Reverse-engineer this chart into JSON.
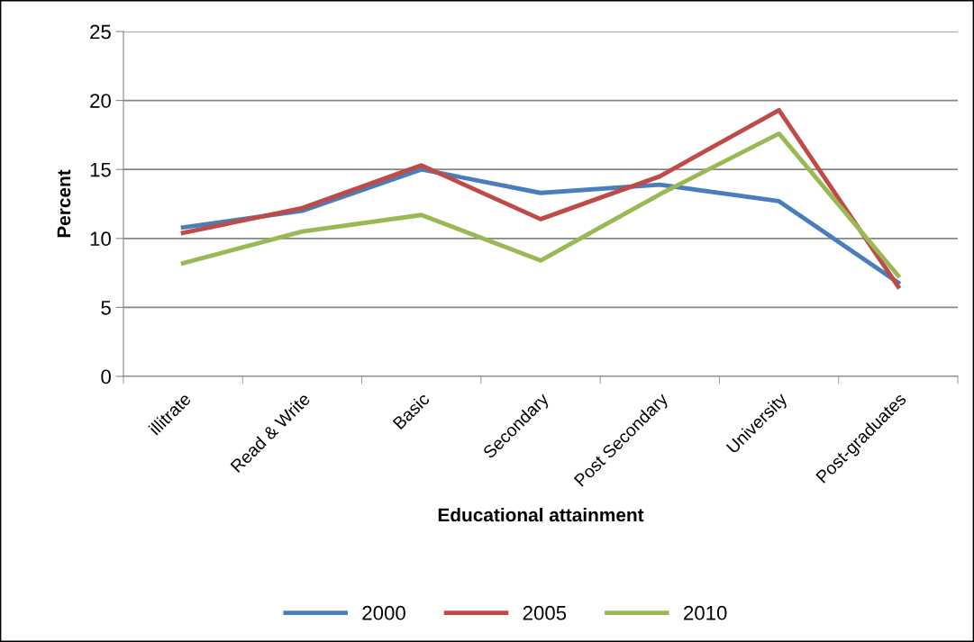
{
  "chart_data": {
    "type": "line",
    "xlabel": "Educational attainment",
    "ylabel": "Percent",
    "categories": [
      "illitrate",
      "Read & Write",
      "Basic",
      "Secondary",
      "Post Secondary",
      "University",
      "Post-graduates"
    ],
    "series": [
      {
        "name": "2000",
        "color": "#4a7ebb",
        "values": [
          10.8,
          12.0,
          15.0,
          13.3,
          13.9,
          12.7,
          6.8
        ]
      },
      {
        "name": "2005",
        "color": "#be4b48",
        "values": [
          10.4,
          12.2,
          15.3,
          11.4,
          14.5,
          19.3,
          6.5
        ]
      },
      {
        "name": "2010",
        "color": "#98b954",
        "values": [
          8.2,
          10.5,
          11.7,
          8.4,
          13.2,
          17.6,
          7.3
        ]
      }
    ],
    "ylim": [
      0,
      25
    ],
    "yticks": [
      0,
      5,
      10,
      15,
      20,
      25
    ],
    "grid": "y",
    "legend": "bottom",
    "marker": "none",
    "line_style": "solid"
  }
}
